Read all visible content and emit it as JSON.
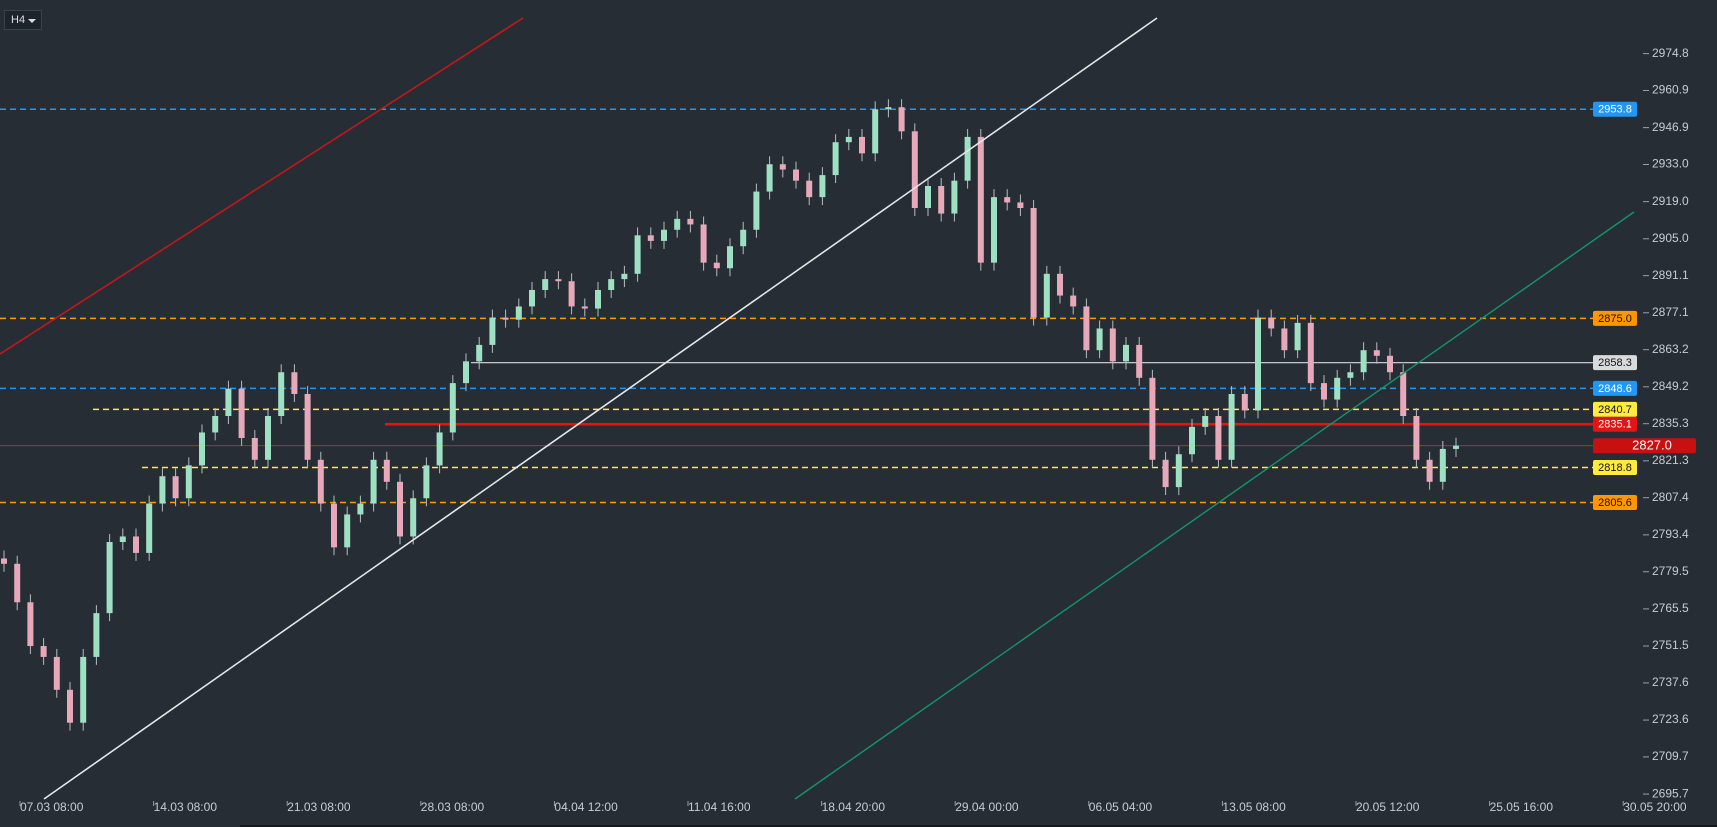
{
  "toolbar": {
    "timeframe": "H4"
  },
  "chart_data": {
    "type": "candlestick",
    "up_color": "#9fe0c2",
    "down_color": "#e7a9b9",
    "wick_color": "#b8bcc0",
    "ylim": [
      2689.7,
      2995.0
    ],
    "yticks": [
      2974.8,
      2960.9,
      2946.9,
      {
        "value": 2933,
        "label": "2933.0"
      },
      {
        "value": 2919,
        "label": "2919.0"
      },
      {
        "value": 2905,
        "label": "2905.0"
      },
      2891.1,
      2877.1,
      2863.2,
      2849.2,
      2835.3,
      2821.3,
      2807.4,
      2793.4,
      2779.5,
      2765.5,
      2751.5,
      2737.6,
      2723.6,
      2709.7,
      2695.7
    ],
    "x_labels": [
      "07.03 08:00",
      "14.03 08:00",
      "21.03 08:00",
      "28.03 08:00",
      "04.04 12:00",
      "11.04 16:00",
      "18.04 20:00",
      "29.04 00:00",
      "06.05 04:00",
      "13.05 08:00",
      "20.05 12:00",
      "25.05 16:00",
      "30.05 20:00"
    ],
    "levels": [
      {
        "value": 2953.8,
        "color": "#2196f3",
        "style": "dashed"
      },
      {
        "value": 2875,
        "label": "2875.0",
        "color": "#ff9800",
        "style": "dashed"
      },
      {
        "value": 2858.3,
        "color": "#d8dadc",
        "style": "solid"
      },
      {
        "value": 2848.6,
        "color": "#2196f3",
        "style": "dashed"
      },
      {
        "value": 2840.7,
        "color": "#ffeb3b",
        "style": "dashed"
      },
      {
        "value": 2835.1,
        "color": "#e01515",
        "style": "thick"
      },
      {
        "value": 2827,
        "label": "2827.0",
        "color": "#c81010",
        "style": "current"
      },
      {
        "value": 2818.8,
        "color": "#ffeb3b",
        "style": "dashed"
      },
      {
        "value": 2805.6,
        "color": "#ff9800",
        "style": "dashed"
      }
    ],
    "candles": [
      [
        2784.5,
        2787.5,
        2779.5,
        2782.5
      ],
      [
        2782.5,
        2785.5,
        2765.0,
        2768.0
      ],
      [
        2768.0,
        2771.0,
        2748.5,
        2751.5
      ],
      [
        2751.5,
        2754.5,
        2744.4,
        2747.4
      ],
      [
        2747.4,
        2750.4,
        2732.0,
        2735.0
      ],
      [
        2735.0,
        2738.0,
        2719.6,
        2722.6
      ],
      [
        2722.6,
        2750.4,
        2719.6,
        2747.4
      ],
      [
        2747.4,
        2766.9,
        2744.4,
        2763.9
      ],
      [
        2763.9,
        2793.7,
        2760.9,
        2790.7
      ],
      [
        2790.7,
        2795.8,
        2787.7,
        2792.8
      ],
      [
        2792.8,
        2795.8,
        2783.6,
        2786.6
      ],
      [
        2786.6,
        2808.2,
        2783.6,
        2805.2
      ],
      [
        2805.2,
        2818.5,
        2802.2,
        2815.5
      ],
      [
        2815.5,
        2818.5,
        2804.2,
        2807.2
      ],
      [
        2807.2,
        2822.6,
        2804.2,
        2819.6
      ],
      [
        2819.6,
        2835.0,
        2816.6,
        2832.0
      ],
      [
        2832.0,
        2841.2,
        2829.0,
        2838.2
      ],
      [
        2838.2,
        2851.5,
        2835.2,
        2848.5
      ],
      [
        2848.5,
        2851.5,
        2826.9,
        2829.9
      ],
      [
        2829.9,
        2832.9,
        2818.7,
        2821.7
      ],
      [
        2821.7,
        2841.2,
        2818.7,
        2838.2
      ],
      [
        2838.2,
        2857.7,
        2835.2,
        2854.7
      ],
      [
        2854.7,
        2857.7,
        2843.5,
        2846.5
      ],
      [
        2846.5,
        2849.5,
        2818.7,
        2821.7
      ],
      [
        2821.7,
        2824.7,
        2802.2,
        2805.2
      ],
      [
        2805.2,
        2808.2,
        2785.7,
        2788.7
      ],
      [
        2788.7,
        2804.1,
        2785.7,
        2801.1
      ],
      [
        2801.1,
        2808.2,
        2798.1,
        2805.2
      ],
      [
        2805.2,
        2824.7,
        2802.2,
        2821.7
      ],
      [
        2821.7,
        2824.7,
        2810.4,
        2813.4
      ],
      [
        2813.4,
        2816.4,
        2789.8,
        2792.8
      ],
      [
        2792.8,
        2810.2,
        2789.8,
        2807.2
      ],
      [
        2807.2,
        2822.6,
        2804.2,
        2819.6
      ],
      [
        2819.6,
        2835.0,
        2816.6,
        2832.0
      ],
      [
        2832.0,
        2853.6,
        2829.0,
        2850.6
      ],
      [
        2850.6,
        2861.8,
        2847.6,
        2858.8
      ],
      [
        2858.8,
        2868.0,
        2855.8,
        2865.0
      ],
      [
        2865.0,
        2878.3,
        2862.0,
        2875.3
      ],
      [
        2875.3,
        2878.3,
        2871.5,
        2874.5
      ],
      [
        2874.5,
        2882.5,
        2871.5,
        2879.5
      ],
      [
        2879.5,
        2888.7,
        2876.5,
        2885.7
      ],
      [
        2885.7,
        2892.8,
        2882.7,
        2889.8
      ],
      [
        2889.8,
        2892.8,
        2886.0,
        2889.0
      ],
      [
        2889.0,
        2892.0,
        2876.5,
        2879.5
      ],
      [
        2879.5,
        2882.5,
        2875.7,
        2878.7
      ],
      [
        2878.7,
        2888.7,
        2875.7,
        2885.7
      ],
      [
        2885.7,
        2892.8,
        2882.7,
        2889.8
      ],
      [
        2889.8,
        2894.8,
        2886.8,
        2891.8
      ],
      [
        2891.8,
        2909.3,
        2888.8,
        2906.3
      ],
      [
        2906.3,
        2909.3,
        2901.2,
        2904.2
      ],
      [
        2904.2,
        2911.4,
        2901.2,
        2908.4
      ],
      [
        2908.4,
        2915.5,
        2905.4,
        2912.5
      ],
      [
        2912.5,
        2915.5,
        2907.4,
        2910.4
      ],
      [
        2910.4,
        2913.4,
        2893.0,
        2896.0
      ],
      [
        2896.0,
        2899.0,
        2890.9,
        2893.9
      ],
      [
        2893.9,
        2905.2,
        2890.9,
        2902.2
      ],
      [
        2902.2,
        2911.4,
        2899.2,
        2908.4
      ],
      [
        2908.4,
        2925.8,
        2905.4,
        2922.8
      ],
      [
        2922.8,
        2936.1,
        2919.8,
        2933.1
      ],
      [
        2933.1,
        2936.1,
        2928.1,
        2931.1
      ],
      [
        2931.1,
        2934.1,
        2923.9,
        2926.9
      ],
      [
        2926.9,
        2929.9,
        2917.7,
        2920.7
      ],
      [
        2920.7,
        2932.0,
        2917.7,
        2929.0
      ],
      [
        2929.0,
        2944.4,
        2926.0,
        2941.4
      ],
      [
        2941.4,
        2946.4,
        2938.4,
        2943.4
      ],
      [
        2943.4,
        2946.4,
        2934.2,
        2937.2
      ],
      [
        2937.2,
        2956.8,
        2934.2,
        2953.8
      ],
      [
        2953.8,
        2957.6,
        2950.8,
        2954.6
      ],
      [
        2954.6,
        2957.6,
        2942.5,
        2945.5
      ],
      [
        2945.5,
        2948.5,
        2913.6,
        2916.6
      ],
      [
        2916.6,
        2927.9,
        2913.6,
        2924.9
      ],
      [
        2924.9,
        2927.9,
        2911.5,
        2914.5
      ],
      [
        2914.5,
        2929.9,
        2911.5,
        2926.9
      ],
      [
        2926.9,
        2946.4,
        2923.9,
        2943.4
      ],
      [
        2943.4,
        2946.4,
        2893.0,
        2896.0
      ],
      [
        2896.0,
        2923.7,
        2893.0,
        2920.7
      ],
      [
        2920.7,
        2923.7,
        2915.7,
        2918.7
      ],
      [
        2918.7,
        2921.7,
        2913.6,
        2916.6
      ],
      [
        2916.6,
        2919.6,
        2872.3,
        2875.3
      ],
      [
        2875.3,
        2894.8,
        2872.3,
        2891.8
      ],
      [
        2891.8,
        2894.8,
        2880.6,
        2883.6
      ],
      [
        2883.6,
        2886.6,
        2876.5,
        2879.5
      ],
      [
        2879.5,
        2882.5,
        2860.0,
        2863.0
      ],
      [
        2863.0,
        2874.2,
        2860.0,
        2871.2
      ],
      [
        2871.2,
        2874.2,
        2855.8,
        2858.8
      ],
      [
        2858.8,
        2868.0,
        2855.8,
        2865.0
      ],
      [
        2865.0,
        2868.0,
        2849.6,
        2852.6
      ],
      [
        2852.6,
        2855.6,
        2818.7,
        2821.7
      ],
      [
        2821.7,
        2824.7,
        2808.4,
        2811.4
      ],
      [
        2811.4,
        2826.8,
        2808.4,
        2823.8
      ],
      [
        2823.8,
        2837.1,
        2820.8,
        2834.1
      ],
      [
        2834.1,
        2841.2,
        2831.1,
        2838.2
      ],
      [
        2838.2,
        2841.2,
        2818.7,
        2821.7
      ],
      [
        2821.7,
        2849.5,
        2818.7,
        2846.5
      ],
      [
        2846.5,
        2849.5,
        2837.3,
        2840.3
      ],
      [
        2840.3,
        2878.3,
        2837.3,
        2875.3
      ],
      [
        2875.3,
        2878.3,
        2868.2,
        2871.2
      ],
      [
        2871.2,
        2874.2,
        2860.0,
        2863.0
      ],
      [
        2863.0,
        2876.3,
        2860.0,
        2873.3
      ],
      [
        2873.3,
        2876.3,
        2847.6,
        2850.6
      ],
      [
        2850.6,
        2853.6,
        2841.4,
        2844.4
      ],
      [
        2844.4,
        2855.6,
        2841.4,
        2852.6
      ],
      [
        2852.6,
        2857.7,
        2849.6,
        2854.7
      ],
      [
        2854.7,
        2866.0,
        2851.7,
        2863.0
      ],
      [
        2863.0,
        2866.0,
        2857.9,
        2860.9
      ],
      [
        2860.9,
        2863.9,
        2851.7,
        2854.7
      ],
      [
        2854.7,
        2857.7,
        2835.2,
        2838.2
      ],
      [
        2838.2,
        2841.2,
        2818.7,
        2821.7
      ],
      [
        2821.7,
        2824.7,
        2810.4,
        2813.4
      ],
      [
        2813.4,
        2828.8,
        2810.4,
        2825.8
      ],
      [
        2825.8,
        2830.0,
        2822.8,
        2827.0
      ]
    ]
  }
}
